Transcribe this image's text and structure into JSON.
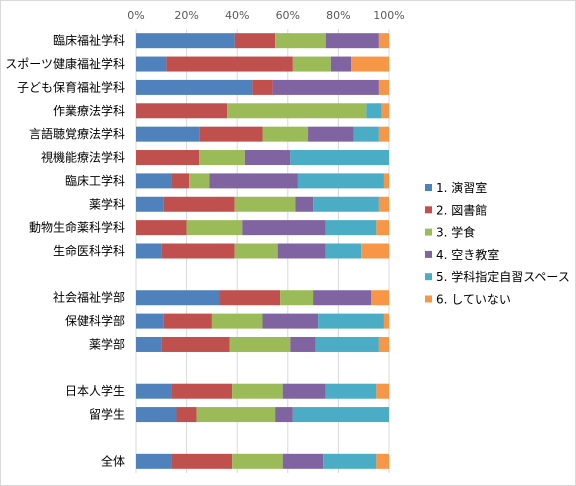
{
  "chart_data": {
    "type": "bar",
    "orientation": "horizontal",
    "stacked": true,
    "title": "",
    "xlabel": "",
    "ylabel": "",
    "xlim": [
      0,
      100
    ],
    "x_ticks": [
      "0%",
      "20%",
      "40%",
      "60%",
      "80%",
      "100%"
    ],
    "grid": true,
    "legend_position": "right",
    "categories": [
      "臨床福祉学科",
      "スポーツ健康福祉学科",
      "子ども保育福祉学科",
      "作業療法学科",
      "言語聴覚療法学科",
      "視機能療法学科",
      "臨床工学科",
      "薬学科",
      "動物生命薬科学科",
      "生命医科学科",
      "",
      "社会福祉学部",
      "保健科学部",
      "薬学部",
      "",
      "日本人学生",
      "留学生",
      "",
      "全体"
    ],
    "series": [
      {
        "name": "1. 演習室",
        "color": "#4f81bd",
        "values": [
          39,
          12,
          46,
          0,
          25,
          0,
          14,
          11,
          0,
          10,
          null,
          33,
          11,
          10,
          null,
          14,
          16,
          null,
          14
        ]
      },
      {
        "name": "2. 図書館",
        "color": "#c0504d",
        "values": [
          16,
          50,
          8,
          36,
          25,
          25,
          7,
          28,
          20,
          29,
          null,
          24,
          19,
          27,
          null,
          24,
          8,
          null,
          24
        ]
      },
      {
        "name": "3. 学食",
        "color": "#9bbb59",
        "values": [
          20,
          15,
          0,
          55,
          18,
          18,
          8,
          24,
          22,
          17,
          null,
          13,
          20,
          24,
          null,
          20,
          31,
          null,
          20
        ]
      },
      {
        "name": "4. 空き教室",
        "color": "#8064a2",
        "values": [
          21,
          8,
          42,
          0,
          18,
          18,
          35,
          7,
          33,
          19,
          null,
          23,
          22,
          10,
          null,
          17,
          7,
          null,
          16
        ]
      },
      {
        "name": "5. 学科指定自習スペース",
        "color": "#4bacc6",
        "values": [
          0,
          0,
          0,
          6,
          10,
          39,
          34,
          26,
          20,
          14,
          null,
          0,
          26,
          25,
          null,
          20,
          38,
          null,
          21
        ]
      },
      {
        "name": "6. していない",
        "color": "#f79646",
        "values": [
          4,
          15,
          4,
          3,
          4,
          0,
          2,
          4,
          5,
          11,
          null,
          7,
          2,
          4,
          null,
          5,
          0,
          null,
          5
        ]
      }
    ]
  }
}
